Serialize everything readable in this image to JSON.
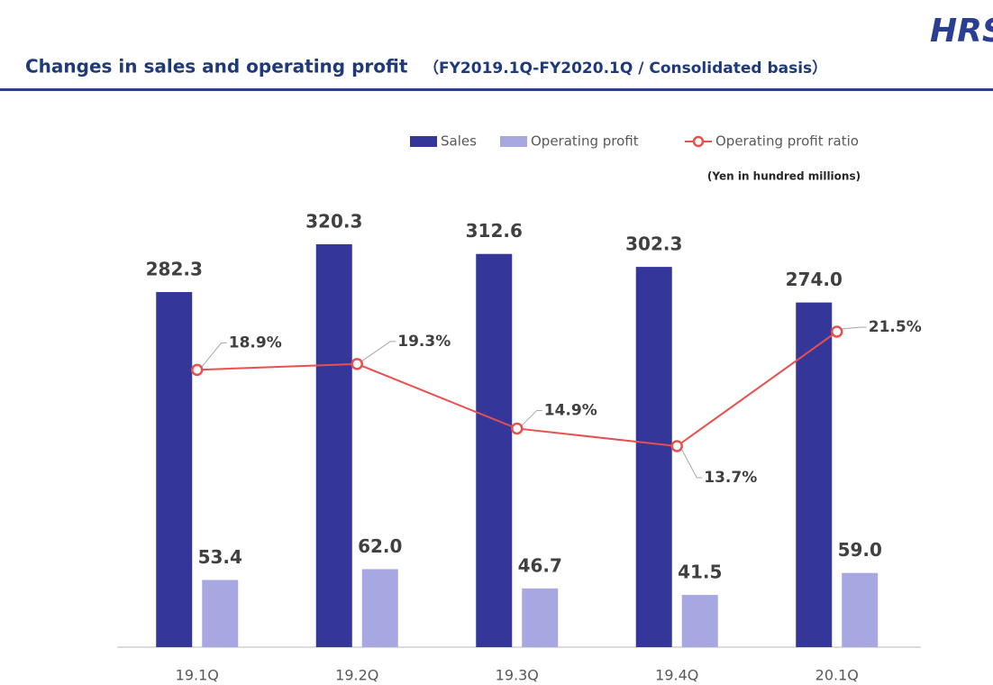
{
  "chart_data": {
    "type": "bar_line",
    "title": "Changes in sales and operating profit",
    "subtitle": "（FY2019.1Q-FY2020.1Q / Consolidated basis）",
    "logo": "HRS",
    "unit_note": "(Yen in hundred millions)",
    "categories": [
      "19.1Q",
      "19.2Q",
      "19.3Q",
      "19.4Q",
      "20.1Q"
    ],
    "series": [
      {
        "name": "Sales",
        "type": "bar",
        "color": "#35369a",
        "values": [
          282.3,
          320.3,
          312.6,
          302.3,
          274.0
        ],
        "value_labels": [
          "282.3",
          "320.3",
          "312.6",
          "302.3",
          "274.0"
        ]
      },
      {
        "name": "Operating profit",
        "type": "bar",
        "color": "#a7a7e1",
        "values": [
          53.4,
          62.0,
          46.7,
          41.5,
          59.0
        ],
        "value_labels": [
          "53.4",
          "62.0",
          "46.7",
          "41.5",
          "59.0"
        ]
      },
      {
        "name": "Operating profit ratio",
        "type": "line",
        "color": "#e8504e",
        "values": [
          18.9,
          19.3,
          14.9,
          13.7,
          21.5
        ],
        "value_labels": [
          "18.9%",
          "19.3%",
          "14.9%",
          "13.7%",
          "21.5%"
        ]
      }
    ],
    "legend": "top"
  }
}
